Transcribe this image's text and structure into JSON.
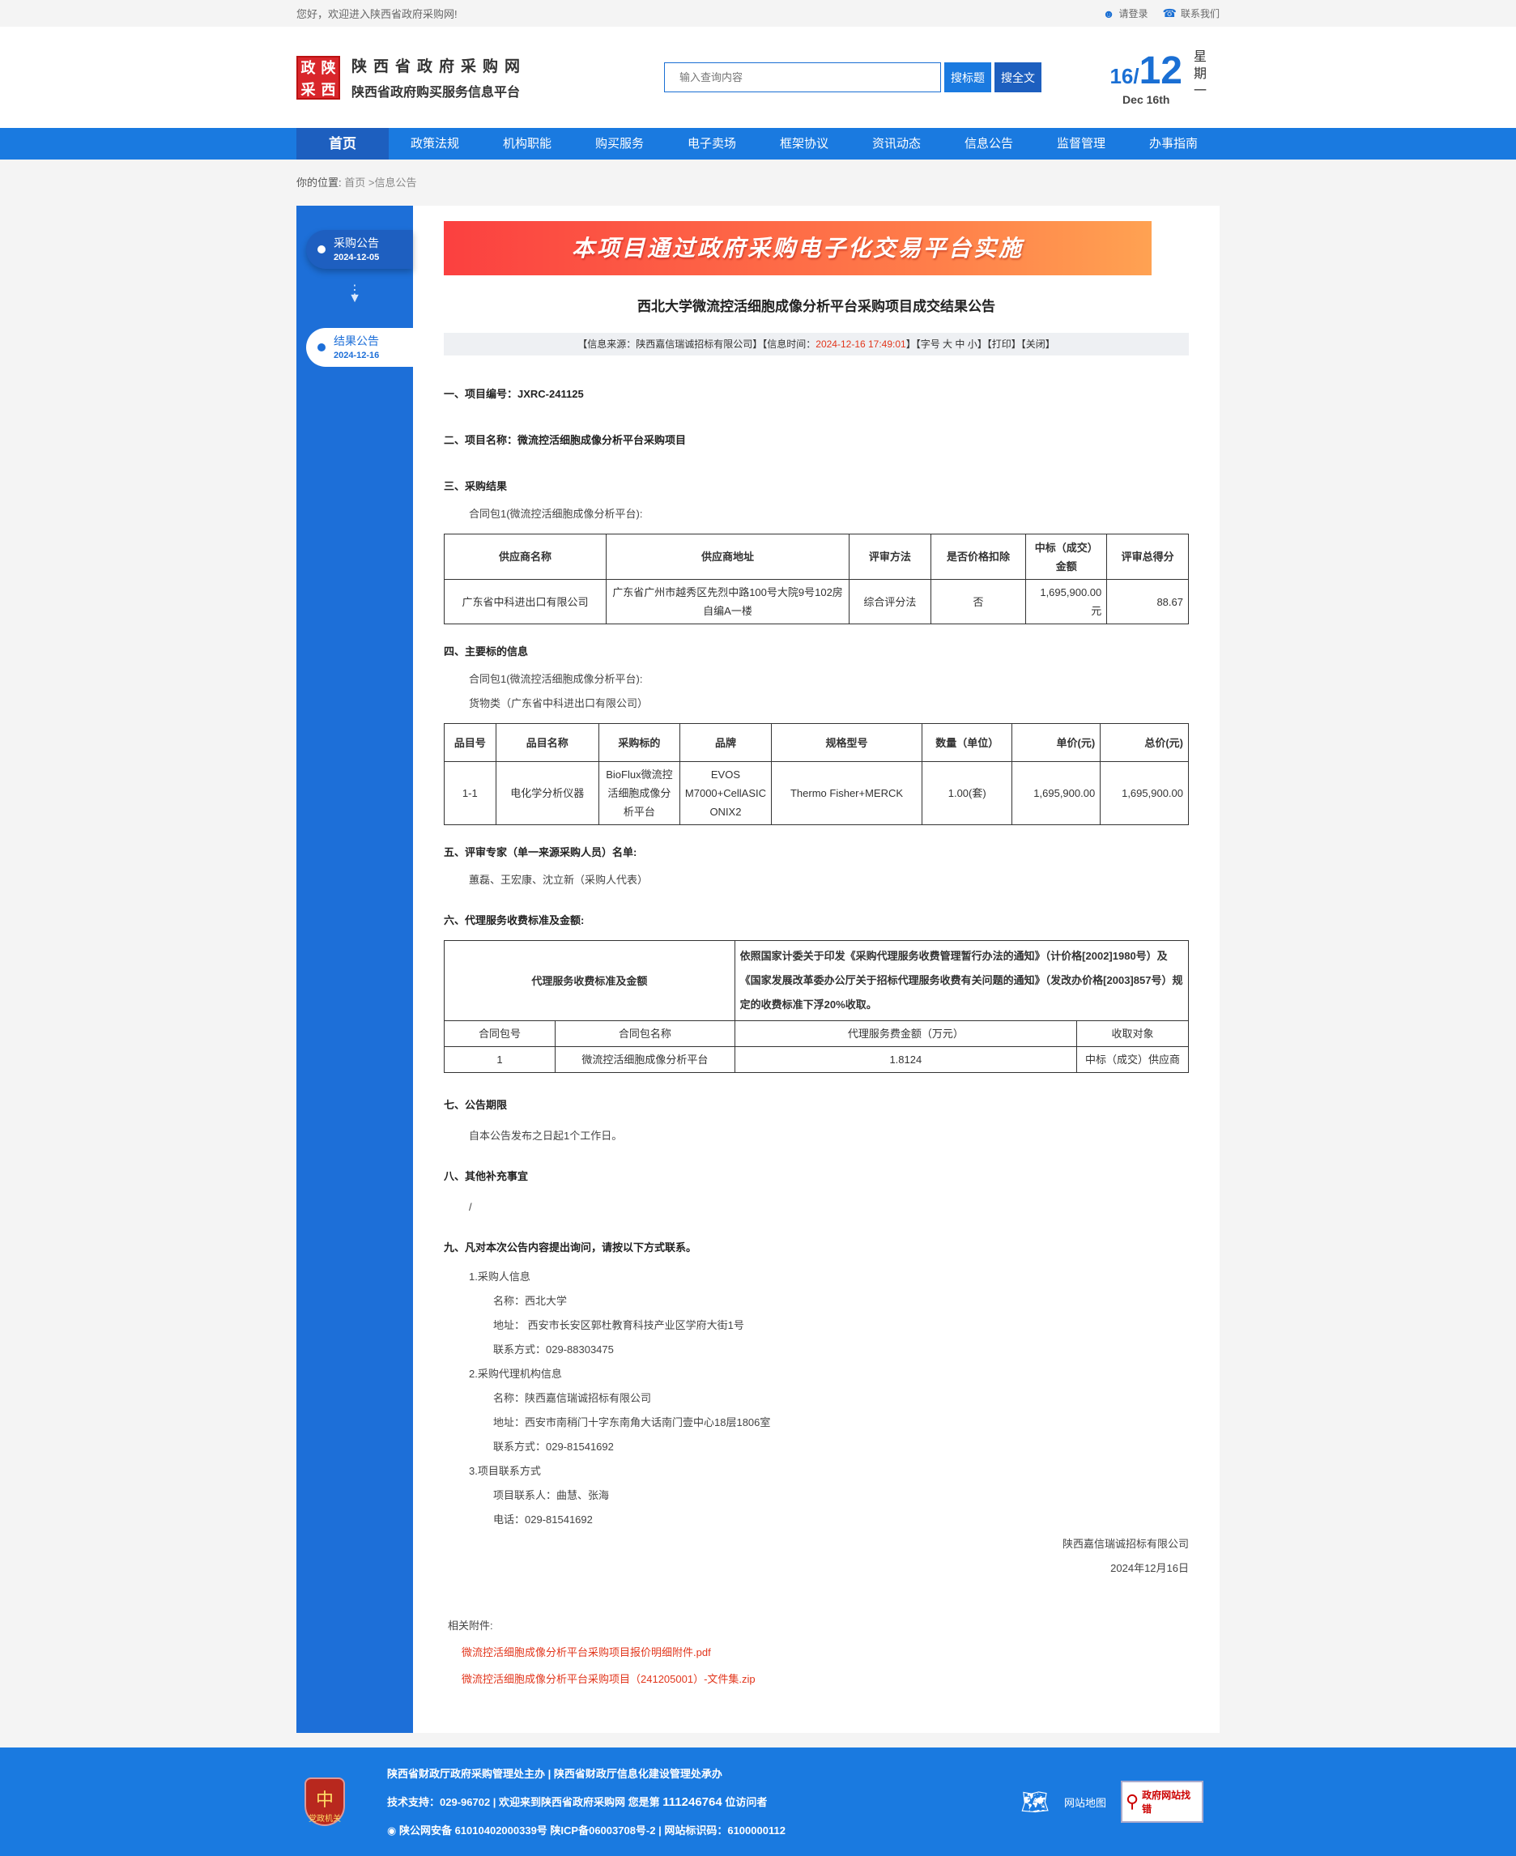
{
  "topbar": {
    "welcome": "您好，欢迎进入陕西省政府采购网!",
    "login": "请登录",
    "contact": "联系我们"
  },
  "header": {
    "logo_chars": [
      "政",
      "陕",
      "采",
      "西"
    ],
    "site_name": "陕西省政府采购网",
    "subtitle": "陕西省政府购买服务信息平台",
    "search_placeholder": "输入查询内容",
    "search_title": "搜标题",
    "search_full": "搜全文",
    "date_day": "16/",
    "date_month": "12",
    "date_en": "Dec 16th",
    "weekday": "星期一"
  },
  "nav": [
    "首页",
    "政策法规",
    "机构职能",
    "购买服务",
    "电子卖场",
    "框架协议",
    "资讯动态",
    "信息公告",
    "监督管理",
    "办事指南"
  ],
  "breadcrumb": {
    "label": "你的位置:",
    "path": "首页 >信息公告"
  },
  "sidebar": [
    {
      "label": "采购公告",
      "date": "2024-12-05"
    },
    {
      "label": "结果公告",
      "date": "2024-12-16"
    }
  ],
  "banner": "本项目通过政府采购电子化交易平台实施",
  "title": "西北大学微流控活细胞成像分析平台采购项目成交结果公告",
  "info": {
    "source": "【信息来源：陕西嘉信瑞诚招标有限公司】【信息时间：",
    "time": "2024-12-16 17:49:01",
    "rest": "】【字号 大 中 小】【打印】【关闭】"
  },
  "s1": "一、项目编号：JXRC-241125",
  "s2": "二、项目名称：微流控活细胞成像分析平台采购项目",
  "s3": "三、采购结果",
  "s3_pkg": "合同包1(微流控活细胞成像分析平台):",
  "t1": {
    "headers": [
      "供应商名称",
      "供应商地址",
      "评审方法",
      "是否价格扣除",
      "中标（成交）金额",
      "评审总得分"
    ],
    "row": [
      "广东省中科进出口有限公司",
      "广东省广州市越秀区先烈中路100号大院9号102房自编A一楼",
      "综合评分法",
      "否",
      "1,695,900.00元",
      "88.67"
    ]
  },
  "s4": "四、主要标的信息",
  "s4_pkg": "合同包1(微流控活细胞成像分析平台):",
  "s4_cat": "货物类（广东省中科进出口有限公司）",
  "t2": {
    "headers": [
      "品目号",
      "品目名称",
      "采购标的",
      "品牌",
      "规格型号",
      "数量（单位）",
      "单价(元)",
      "总价(元)"
    ],
    "row": [
      "1-1",
      "电化学分析仪器",
      "BioFlux微流控活细胞成像分析平台",
      "EVOS M7000+CellASIC ONIX2",
      "Thermo Fisher+MERCK",
      "1.00(套)",
      "1,695,900.00",
      "1,695,900.00"
    ]
  },
  "s5": "五、评审专家（单一来源采购人员）名单:",
  "s5_names": "蕙磊、王宏康、沈立新（采购人代表）",
  "s6": "六、代理服务收费标准及金额:",
  "t3": {
    "label": "代理服务收费标准及金额",
    "basis": "依照国家计委关于印发《采购代理服务收费管理暂行办法的通知》（计价格[2002]1980号）及《国家发展改革委办公厅关于招标代理服务收费有关问题的通知》（发改办价格[2003]857号）规定的收费标准下浮20%收取。",
    "headers": [
      "合同包号",
      "合同包名称",
      "代理服务费金额（万元）",
      "收取对象"
    ],
    "row": [
      "1",
      "微流控活细胞成像分析平台",
      "1.8124",
      "中标（成交）供应商"
    ]
  },
  "s7": "七、公告期限",
  "s7_text": "自本公告发布之日起1个工作日。",
  "s8": "八、其他补充事宜",
  "s8_text": "/",
  "s9": "九、凡对本次公告内容提出询问，请按以下方式联系。",
  "contacts": {
    "h1": "1.采购人信息",
    "p_name": "名称：西北大学",
    "p_addr": "地址： 西安市长安区郭杜教育科技产业区学府大街1号",
    "p_tel": "联系方式：029-88303475",
    "h2": "2.采购代理机构信息",
    "a_name": "名称：陕西嘉信瑞诚招标有限公司",
    "a_addr": "地址：西安市南稍门十字东南角大话南门壹中心18层1806室",
    "a_tel": "联系方式：029-81541692",
    "h3": "3.项目联系方式",
    "c_person": "项目联系人：曲慧、张海",
    "c_tel": "电话：029-81541692"
  },
  "sign": {
    "company": "陕西嘉信瑞诚招标有限公司",
    "date": "2024年12月16日"
  },
  "attachments": {
    "label": "相关附件:",
    "files": [
      "微流控活细胞成像分析平台采购项目报价明细附件.pdf",
      "微流控活细胞成像分析平台采购项目（241205001）-文件集.zip"
    ]
  },
  "footer": {
    "line1": "陕西省财政厅政府采购管理处主办 | 陕西省财政厅信息化建设管理处承办",
    "line2a": "技术支持：029-96702 | 欢迎来到陕西省政府采购网 您是第 ",
    "visitors": "111246764",
    "line2b": " 位访问者",
    "line3": "陕公网安备 61010402000339号    陕ICP备06003708号-2  |  网站标识码：6100000112",
    "badge": "党政机关",
    "sitemap": "网站地图",
    "find_error": "政府网站找错"
  },
  "colors": {
    "primary": "#1a7ae0",
    "nav_active": "#1d5fbf",
    "accent_red": "#e2361c"
  }
}
